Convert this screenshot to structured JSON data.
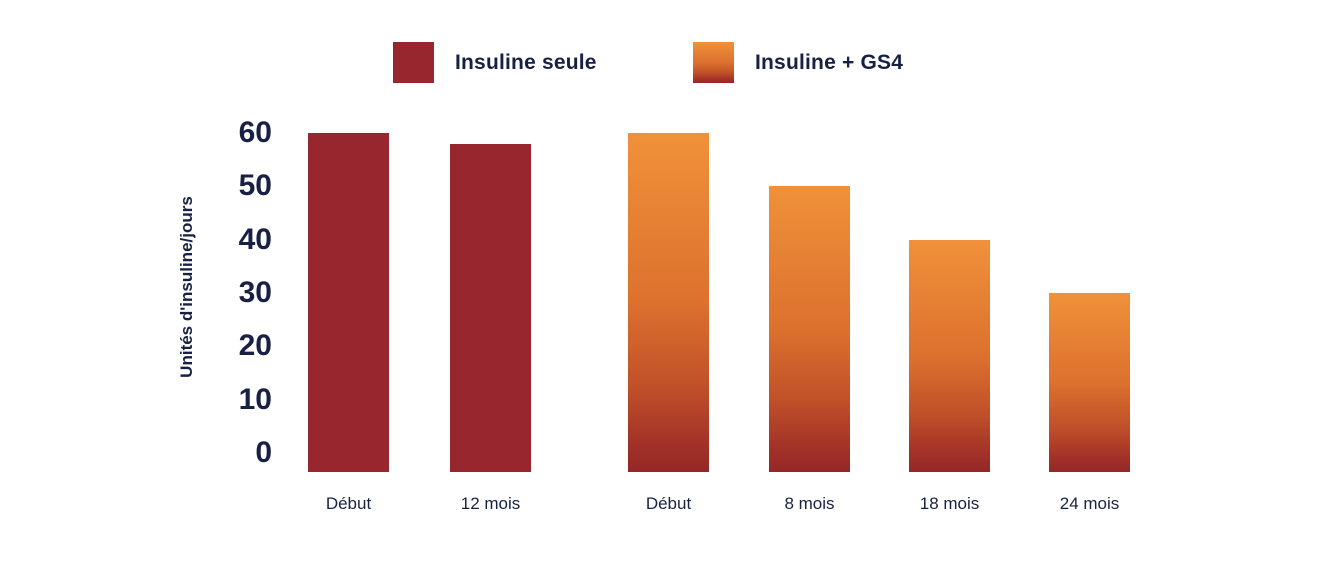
{
  "colors": {
    "background": "#ffffff",
    "text_navy": "#182144",
    "series_red": "#97262F",
    "series_orange_gradient_top": "#F0913A",
    "series_orange_gradient_bottom": "#942827"
  },
  "chart_data": {
    "type": "bar",
    "title": "",
    "xlabel": "",
    "ylabel": "Unités d'insuline/jours",
    "ylim": [
      0,
      60
    ],
    "yticks": [
      60,
      50,
      40,
      30,
      20,
      10,
      0
    ],
    "grid": false,
    "legend_position": "top",
    "legend": [
      {
        "label": "Insuline seule",
        "color": "#97262F",
        "style": "solid"
      },
      {
        "label": "Insuline + GS4",
        "color": "#F0913A",
        "style": "gradient-orange-to-darkred"
      }
    ],
    "series": [
      {
        "name": "Insuline seule",
        "categories": [
          "Début",
          "12 mois"
        ],
        "values": [
          60,
          58
        ]
      },
      {
        "name": "Insuline + GS4",
        "categories": [
          "Début",
          "8 mois",
          "18 mois",
          "24 mois"
        ],
        "values": [
          60,
          50,
          40,
          30
        ]
      }
    ]
  }
}
